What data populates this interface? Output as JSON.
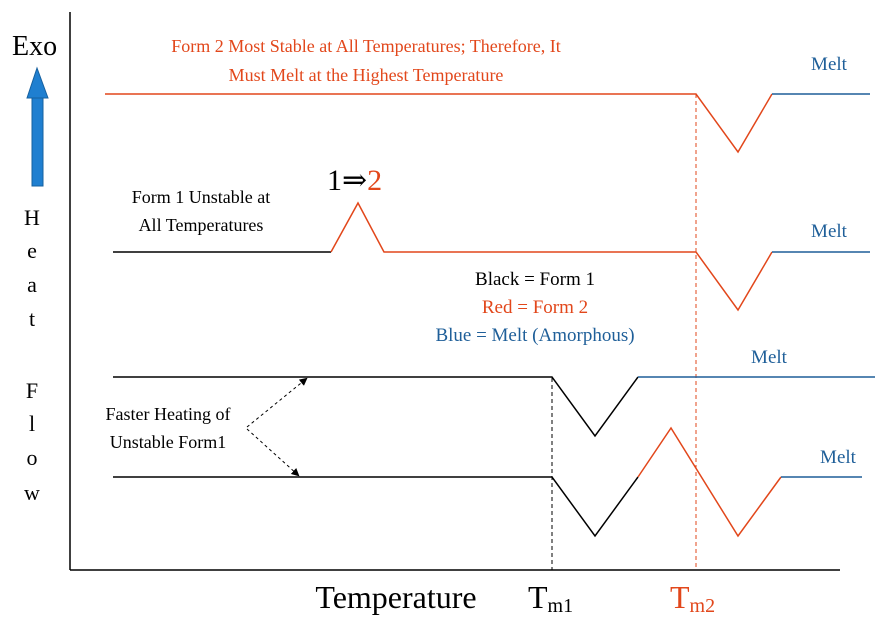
{
  "axes": {
    "exo_label": "Exo",
    "y_label_letters": [
      "H",
      "e",
      "a",
      "t",
      "",
      "F",
      "l",
      "o",
      "w"
    ],
    "x_label": "Temperature",
    "tm1_base": "T",
    "tm1_sub": "m1",
    "tm2_base": "T",
    "tm2_sub": "m2"
  },
  "annotations": {
    "form2_line1": "Form 2 Most Stable at All Temperatures; Therefore, It",
    "form2_line2": "Must Melt at the Highest Temperature",
    "form1_line1": "Form 1 Unstable at",
    "form1_line2": "All Temperatures",
    "transition_from": "1",
    "transition_arrow": "⇒",
    "transition_to": "2",
    "faster_line1": "Faster Heating of",
    "faster_line2": "Unstable Form1"
  },
  "legend": {
    "black": "Black = Form 1",
    "red": "Red = Form 2",
    "blue": "Blue = Melt (Amorphous)"
  },
  "melt_labels": [
    "Melt",
    "Melt",
    "Melt",
    "Melt"
  ],
  "colors": {
    "form1": "#000000",
    "form2": "#e2471b",
    "melt": "#1f5f99",
    "exo_arrow": "#1f7fd0"
  }
}
